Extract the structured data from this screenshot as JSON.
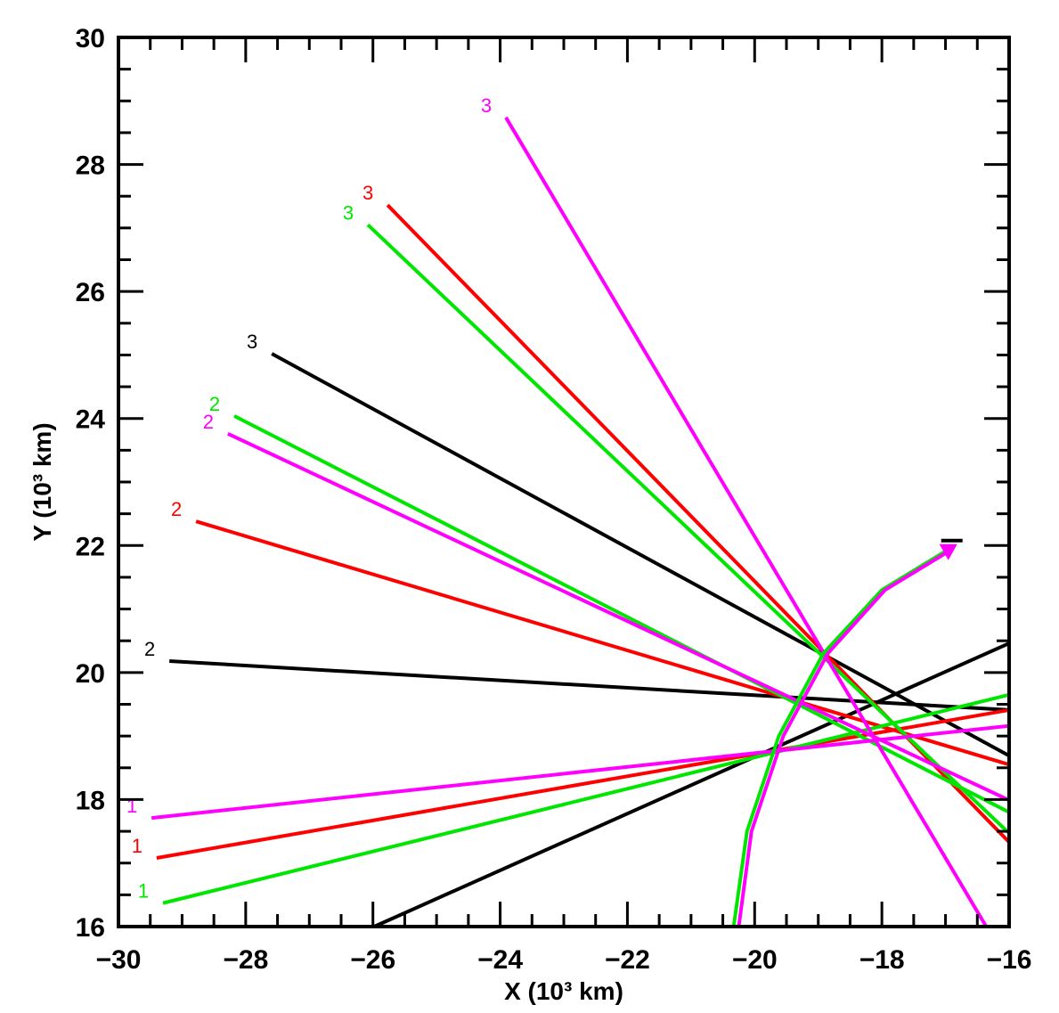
{
  "chart_data": {
    "type": "line",
    "title": "",
    "xlabel": "X (10³ km)",
    "ylabel": "Y (10³ km)",
    "xlim": [
      -30,
      -16
    ],
    "ylim": [
      16,
      30
    ],
    "xticks": [
      -30,
      -28,
      -26,
      -24,
      -22,
      -20,
      -18,
      -16
    ],
    "yticks": [
      16,
      18,
      20,
      22,
      24,
      26,
      28,
      30
    ],
    "xtick_labels": [
      "−30",
      "−28",
      "−26",
      "−24",
      "−22",
      "−20",
      "−18",
      "−16"
    ],
    "ytick_labels": [
      "16",
      "18",
      "20",
      "22",
      "24",
      "26",
      "28",
      "30"
    ],
    "minor_tick_step": 0.5,
    "grid": false,
    "colors": {
      "black": "#000000",
      "red": "#ff0000",
      "green": "#00e600",
      "magenta": "#ff00ff"
    },
    "series": [
      {
        "name": "black-1",
        "label": "",
        "color": "#000000",
        "x": [
          -25.98,
          -16
        ],
        "y": [
          16.0,
          20.46
        ]
      },
      {
        "name": "black-2",
        "label": "2",
        "color": "#000000",
        "x": [
          -29.2,
          -16
        ],
        "y": [
          20.18,
          19.41
        ]
      },
      {
        "name": "black-3",
        "label": "3",
        "color": "#000000",
        "x": [
          -27.59,
          -16
        ],
        "y": [
          25.02,
          18.69
        ]
      },
      {
        "name": "red-1",
        "label": "1",
        "color": "#ff0000",
        "x": [
          -29.4,
          -16
        ],
        "y": [
          17.08,
          19.41
        ]
      },
      {
        "name": "red-2",
        "label": "2",
        "color": "#ff0000",
        "x": [
          -28.78,
          -16
        ],
        "y": [
          22.38,
          18.55
        ]
      },
      {
        "name": "red-3",
        "label": "3",
        "color": "#ff0000",
        "x": [
          -25.77,
          -16
        ],
        "y": [
          27.36,
          17.33
        ]
      },
      {
        "name": "green-1",
        "label": "1",
        "color": "#00e600",
        "x": [
          -29.3,
          -16
        ],
        "y": [
          16.37,
          19.65
        ]
      },
      {
        "name": "green-2",
        "label": "2",
        "color": "#00e600",
        "x": [
          -28.18,
          -16
        ],
        "y": [
          24.04,
          17.8
        ]
      },
      {
        "name": "green-3",
        "label": "3",
        "color": "#00e600",
        "x": [
          -26.08,
          -16
        ],
        "y": [
          27.05,
          17.47
        ]
      },
      {
        "name": "magenta-1",
        "label": "1",
        "color": "#ff00ff",
        "x": [
          -29.48,
          -16
        ],
        "y": [
          17.71,
          19.16
        ]
      },
      {
        "name": "magenta-2",
        "label": "2",
        "color": "#ff00ff",
        "x": [
          -28.28,
          -16
        ],
        "y": [
          23.76,
          17.99
        ]
      },
      {
        "name": "magenta-3",
        "label": "3",
        "color": "#ff00ff",
        "x": [
          -23.91,
          -16.36
        ],
        "y": [
          28.74,
          16.0
        ]
      }
    ],
    "trajectories": [
      {
        "name": "green-trajectory",
        "color": "#00e600",
        "x": [
          -20.33,
          -20.12,
          -19.62,
          -18.92,
          -18.0,
          -16.9
        ],
        "y": [
          16.0,
          17.5,
          19.0,
          20.3,
          21.3,
          21.97
        ]
      },
      {
        "name": "magenta-trajectory",
        "color": "#ff00ff",
        "x": [
          -20.25,
          -20.05,
          -19.55,
          -18.85,
          -17.95,
          -16.88
        ],
        "y": [
          16.0,
          17.5,
          19.0,
          20.3,
          21.3,
          21.95
        ]
      }
    ],
    "marker": {
      "x": -16.9,
      "y": 22.05,
      "color": "#000000"
    }
  }
}
